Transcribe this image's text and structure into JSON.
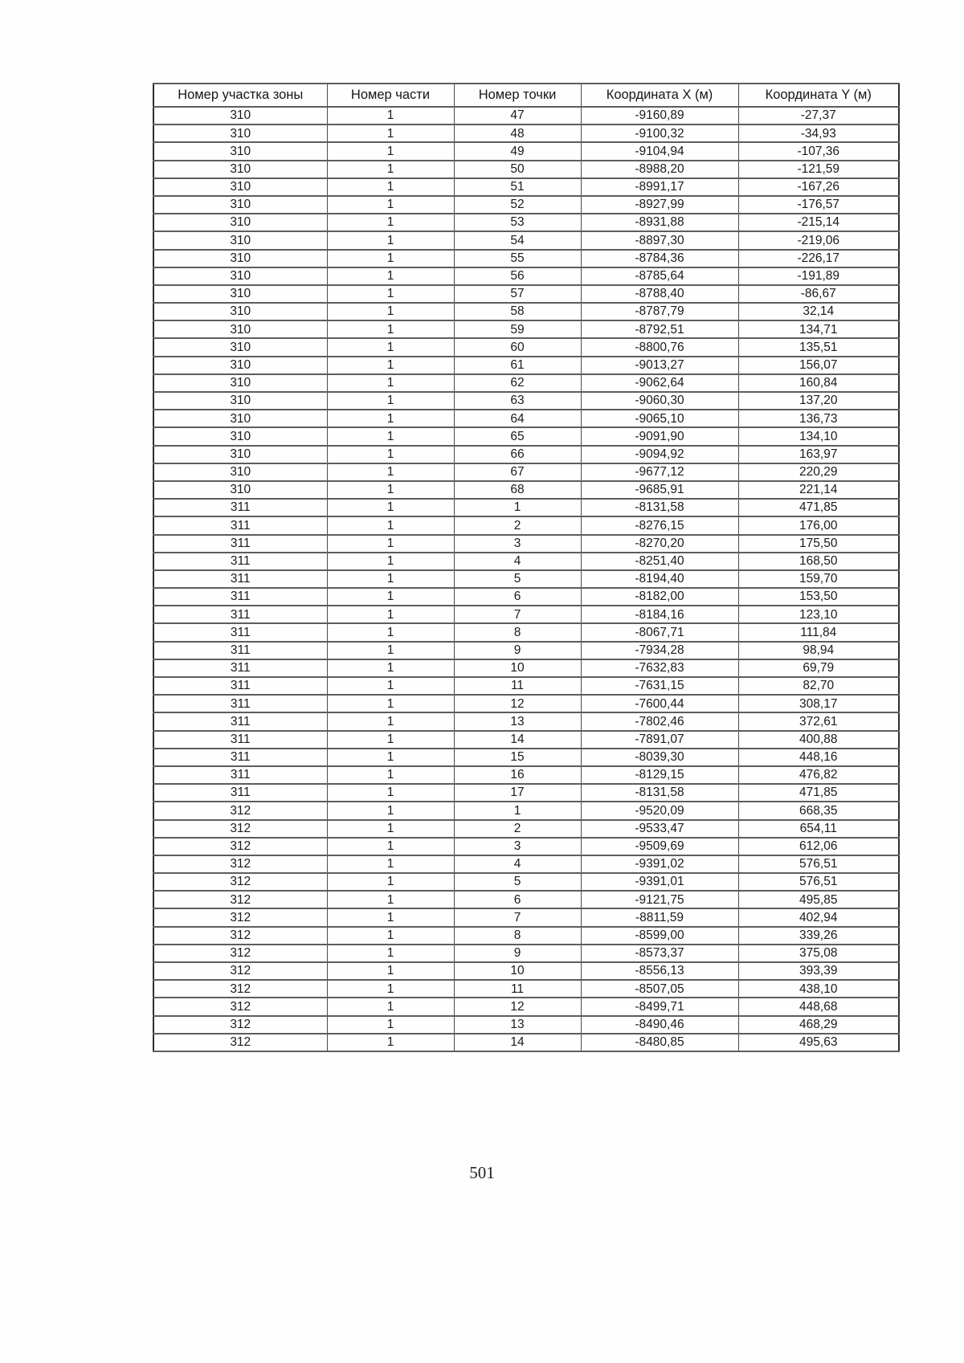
{
  "page": {
    "number": "501"
  },
  "table": {
    "headers": [
      "Номер участка зоны",
      "Номер части",
      "Номер точки",
      "Координата X (м)",
      "Координата Y (м)"
    ],
    "rows": [
      [
        "310",
        "1",
        "47",
        "-9160,89",
        "-27,37"
      ],
      [
        "310",
        "1",
        "48",
        "-9100,32",
        "-34,93"
      ],
      [
        "310",
        "1",
        "49",
        "-9104,94",
        "-107,36"
      ],
      [
        "310",
        "1",
        "50",
        "-8988,20",
        "-121,59"
      ],
      [
        "310",
        "1",
        "51",
        "-8991,17",
        "-167,26"
      ],
      [
        "310",
        "1",
        "52",
        "-8927,99",
        "-176,57"
      ],
      [
        "310",
        "1",
        "53",
        "-8931,88",
        "-215,14"
      ],
      [
        "310",
        "1",
        "54",
        "-8897,30",
        "-219,06"
      ],
      [
        "310",
        "1",
        "55",
        "-8784,36",
        "-226,17"
      ],
      [
        "310",
        "1",
        "56",
        "-8785,64",
        "-191,89"
      ],
      [
        "310",
        "1",
        "57",
        "-8788,40",
        "-86,67"
      ],
      [
        "310",
        "1",
        "58",
        "-8787,79",
        "32,14"
      ],
      [
        "310",
        "1",
        "59",
        "-8792,51",
        "134,71"
      ],
      [
        "310",
        "1",
        "60",
        "-8800,76",
        "135,51"
      ],
      [
        "310",
        "1",
        "61",
        "-9013,27",
        "156,07"
      ],
      [
        "310",
        "1",
        "62",
        "-9062,64",
        "160,84"
      ],
      [
        "310",
        "1",
        "63",
        "-9060,30",
        "137,20"
      ],
      [
        "310",
        "1",
        "64",
        "-9065,10",
        "136,73"
      ],
      [
        "310",
        "1",
        "65",
        "-9091,90",
        "134,10"
      ],
      [
        "310",
        "1",
        "66",
        "-9094,92",
        "163,97"
      ],
      [
        "310",
        "1",
        "67",
        "-9677,12",
        "220,29"
      ],
      [
        "310",
        "1",
        "68",
        "-9685,91",
        "221,14"
      ],
      [
        "311",
        "1",
        "1",
        "-8131,58",
        "471,85"
      ],
      [
        "311",
        "1",
        "2",
        "-8276,15",
        "176,00"
      ],
      [
        "311",
        "1",
        "3",
        "-8270,20",
        "175,50"
      ],
      [
        "311",
        "1",
        "4",
        "-8251,40",
        "168,50"
      ],
      [
        "311",
        "1",
        "5",
        "-8194,40",
        "159,70"
      ],
      [
        "311",
        "1",
        "6",
        "-8182,00",
        "153,50"
      ],
      [
        "311",
        "1",
        "7",
        "-8184,16",
        "123,10"
      ],
      [
        "311",
        "1",
        "8",
        "-8067,71",
        "111,84"
      ],
      [
        "311",
        "1",
        "9",
        "-7934,28",
        "98,94"
      ],
      [
        "311",
        "1",
        "10",
        "-7632,83",
        "69,79"
      ],
      [
        "311",
        "1",
        "11",
        "-7631,15",
        "82,70"
      ],
      [
        "311",
        "1",
        "12",
        "-7600,44",
        "308,17"
      ],
      [
        "311",
        "1",
        "13",
        "-7802,46",
        "372,61"
      ],
      [
        "311",
        "1",
        "14",
        "-7891,07",
        "400,88"
      ],
      [
        "311",
        "1",
        "15",
        "-8039,30",
        "448,16"
      ],
      [
        "311",
        "1",
        "16",
        "-8129,15",
        "476,82"
      ],
      [
        "311",
        "1",
        "17",
        "-8131,58",
        "471,85"
      ],
      [
        "312",
        "1",
        "1",
        "-9520,09",
        "668,35"
      ],
      [
        "312",
        "1",
        "2",
        "-9533,47",
        "654,11"
      ],
      [
        "312",
        "1",
        "3",
        "-9509,69",
        "612,06"
      ],
      [
        "312",
        "1",
        "4",
        "-9391,02",
        "576,51"
      ],
      [
        "312",
        "1",
        "5",
        "-9391,01",
        "576,51"
      ],
      [
        "312",
        "1",
        "6",
        "-9121,75",
        "495,85"
      ],
      [
        "312",
        "1",
        "7",
        "-8811,59",
        "402,94"
      ],
      [
        "312",
        "1",
        "8",
        "-8599,00",
        "339,26"
      ],
      [
        "312",
        "1",
        "9",
        "-8573,37",
        "375,08"
      ],
      [
        "312",
        "1",
        "10",
        "-8556,13",
        "393,39"
      ],
      [
        "312",
        "1",
        "11",
        "-8507,05",
        "438,10"
      ],
      [
        "312",
        "1",
        "12",
        "-8499,71",
        "448,68"
      ],
      [
        "312",
        "1",
        "13",
        "-8490,46",
        "468,29"
      ],
      [
        "312",
        "1",
        "14",
        "-8480,85",
        "495,63"
      ]
    ]
  }
}
